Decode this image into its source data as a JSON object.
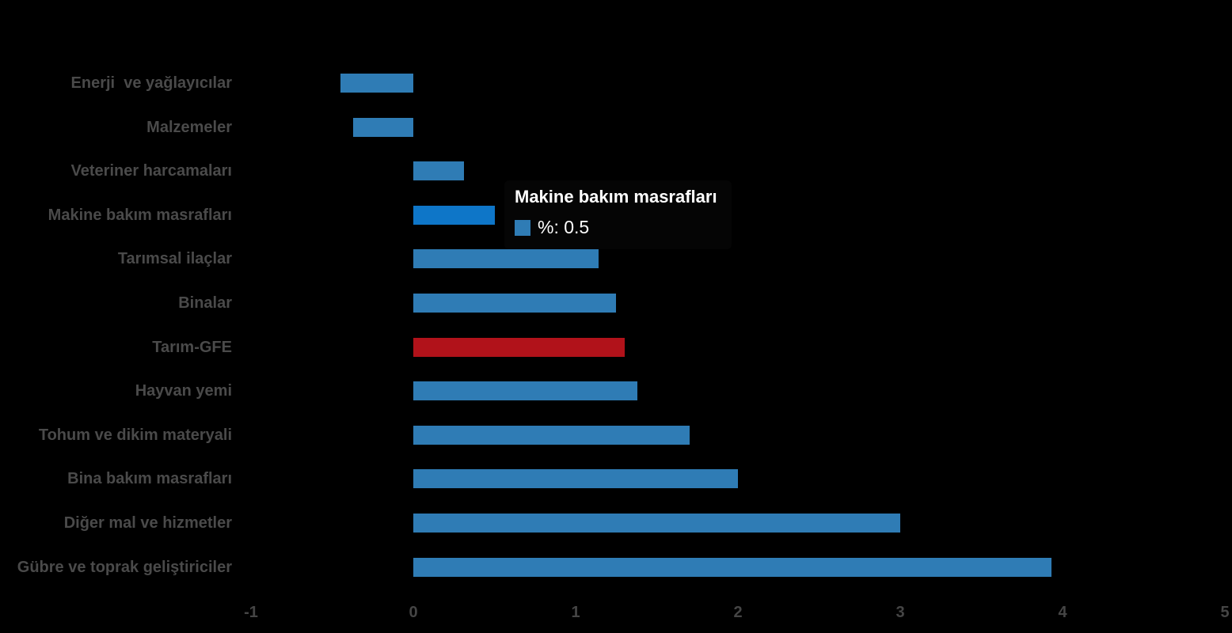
{
  "chart_data": {
    "type": "bar",
    "orientation": "horizontal",
    "series_name": "%",
    "categories": [
      "Enerji  ve yağlayıcılar",
      "Malzemeler",
      "Veteriner harcamaları",
      "Makine bakım masrafları",
      "Tarımsal ilaçlar",
      "Binalar",
      "Tarım-GFE",
      "Hayvan yemi",
      "Tohum ve dikim materyali",
      "Bina bakım masrafları",
      "Diğer mal ve hizmetler",
      "Gübre ve toprak geliştiriciler"
    ],
    "values": [
      -0.45,
      -0.37,
      0.31,
      0.5,
      1.14,
      1.25,
      1.3,
      1.38,
      1.7,
      2.0,
      3.0,
      3.93
    ],
    "highlighted_category": "Tarım-GFE",
    "hovered_category": "Makine bakım masrafları",
    "x_ticks": [
      "-1",
      "0",
      "1",
      "2",
      "3",
      "4",
      "5"
    ],
    "xlim": [
      -1,
      5
    ],
    "grid": false,
    "legend": false,
    "title": ""
  },
  "tooltip": {
    "title": "Makine bakım masrafları",
    "series_name": "%",
    "value": "0.5",
    "value_text": "%: 0.5"
  },
  "colors": {
    "background": "#000000",
    "bar_default": "#2f7cb5",
    "bar_hover": "#0e76c8",
    "bar_highlight": "#b1121a",
    "category_label_text": "#4a4a4a",
    "tick_label_text": "#454545",
    "tooltip_text": "#ffffff"
  }
}
